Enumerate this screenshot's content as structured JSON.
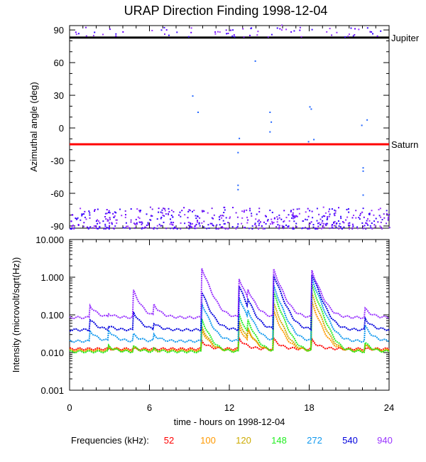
{
  "title": "URAP Direction Finding  1998-12-04",
  "chart_data": [
    {
      "type": "scatter",
      "ylabel": "Azimuthal angle (deg)",
      "xlim": [
        0,
        24
      ],
      "ylim": [
        -92,
        94
      ],
      "yticks": [
        90,
        60,
        30,
        0,
        -30,
        -60,
        -90
      ],
      "reference_lines": [
        {
          "label": "Jupiter",
          "y": 83,
          "color": "#000000"
        },
        {
          "label": "Saturn",
          "y": -15,
          "color": "#ff0000"
        }
      ],
      "scatter_points": [
        [
          9.2,
          30
        ],
        [
          9.6,
          15
        ],
        [
          12.7,
          -9
        ],
        [
          12.6,
          -22
        ],
        [
          12.6,
          -52
        ],
        [
          12.6,
          -56
        ],
        [
          13.9,
          62
        ],
        [
          15.0,
          15
        ],
        [
          15.1,
          6
        ],
        [
          15.0,
          -3
        ],
        [
          18.0,
          20
        ],
        [
          18.1,
          18
        ],
        [
          17.9,
          -12
        ],
        [
          18.3,
          -10
        ],
        [
          21.9,
          3
        ],
        [
          22.3,
          8
        ],
        [
          22.0,
          -36
        ],
        [
          22.0,
          -39
        ],
        [
          22.0,
          -61
        ],
        [
          10.9,
          87
        ],
        [
          15.9,
          95
        ],
        [
          19.5,
          92
        ]
      ],
      "scatter_band": {
        "y_range": [
          -92,
          -72
        ],
        "count": 560
      },
      "top_band": {
        "y_range": [
          84,
          93
        ],
        "count": 70
      }
    },
    {
      "type": "line",
      "ylabel": "Intensity (microvolt/sqrt(Hz))",
      "xlabel": "time - hours on 1998-12-04",
      "xlim": [
        0,
        24
      ],
      "xticks": [
        0,
        6,
        12,
        18,
        24
      ],
      "xtick_labels": [
        "0",
        "6",
        "12",
        "18",
        "24"
      ],
      "yscale": "log",
      "ylim": [
        0.001,
        10
      ],
      "yticks": [
        10,
        1,
        0.1,
        0.01,
        0.001
      ],
      "ytick_labels": [
        "10.000",
        "1.000",
        "0.100",
        "0.010",
        "0.001"
      ],
      "events": [
        1.5,
        2.9,
        4.8,
        6.3,
        9.9,
        12.7,
        13.4,
        15.3,
        18.2,
        22.2
      ],
      "legend_label": "Frequencies (kHz):",
      "series": [
        {
          "name": "52",
          "color": "#ff0000",
          "base": 0.0125,
          "amps": [
            0,
            0,
            0,
            0,
            0.008,
            0.012,
            0,
            0.011,
            0.009,
            0
          ]
        },
        {
          "name": "100",
          "color": "#ff9900",
          "base": 0.0115,
          "amps": [
            0,
            0.003,
            0.002,
            0,
            0.03,
            0.04,
            0.02,
            0.12,
            0.2,
            0.004
          ]
        },
        {
          "name": "120",
          "color": "#ccaa00",
          "base": 0.011,
          "amps": [
            0,
            0.003,
            0.002,
            0,
            0.04,
            0.06,
            0.02,
            0.2,
            0.35,
            0.005
          ]
        },
        {
          "name": "148",
          "color": "#22ee22",
          "base": 0.0105,
          "amps": [
            0,
            0.005,
            0.004,
            0.002,
            0.07,
            0.1,
            0.04,
            0.4,
            0.6,
            0.008
          ]
        },
        {
          "name": "272",
          "color": "#1199ee",
          "base": 0.02,
          "amps": [
            0.02,
            0.02,
            0.01,
            0.01,
            0.2,
            0.3,
            0.05,
            0.6,
            0.9,
            0.03
          ]
        },
        {
          "name": "540",
          "color": "#0000dd",
          "base": 0.04,
          "amps": [
            0.04,
            0.01,
            0.08,
            0.02,
            0.4,
            0.6,
            0.1,
            1.2,
            1.2,
            0.04
          ]
        },
        {
          "name": "940",
          "color": "#9933ff",
          "base": 0.085,
          "amps": [
            0.1,
            0.02,
            0.35,
            0.1,
            1.8,
            0.9,
            0.2,
            1.6,
            1.4,
            0.06
          ]
        }
      ]
    }
  ]
}
